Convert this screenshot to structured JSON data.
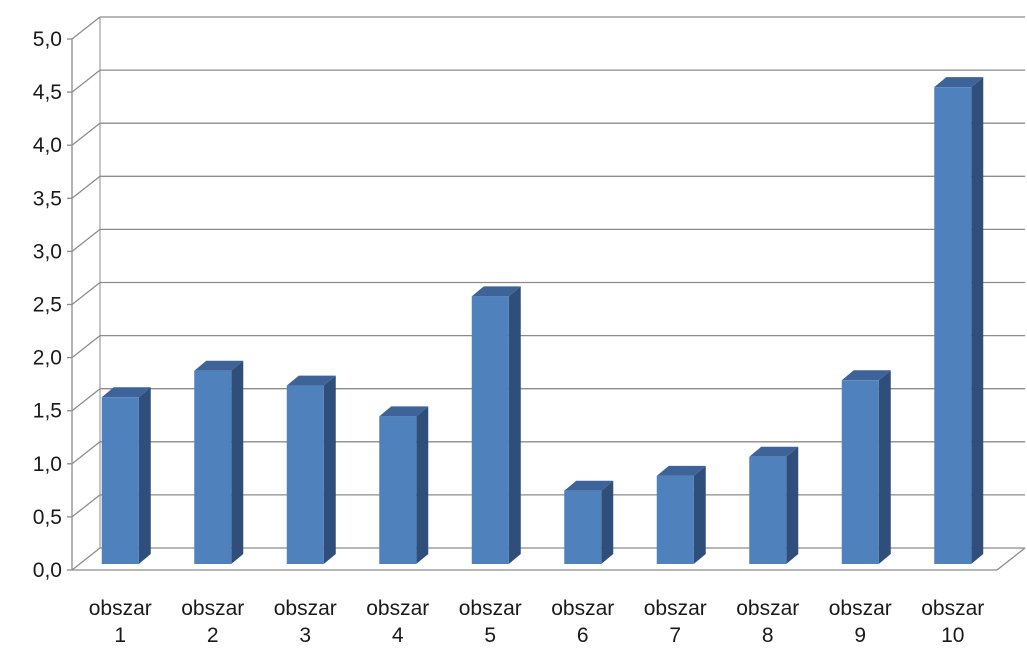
{
  "chart_data": {
    "type": "bar",
    "title": "",
    "xlabel": "",
    "ylabel": "",
    "categories": [
      [
        "obszar",
        "1"
      ],
      [
        "obszar",
        "2"
      ],
      [
        "obszar",
        "3"
      ],
      [
        "obszar",
        "4"
      ],
      [
        "obszar",
        "5"
      ],
      [
        "obszar",
        "6"
      ],
      [
        "obszar",
        "7"
      ],
      [
        "obszar",
        "8"
      ],
      [
        "obszar",
        "9"
      ],
      [
        "obszar",
        "10"
      ]
    ],
    "values": [
      1.57,
      1.82,
      1.68,
      1.39,
      2.52,
      0.69,
      0.83,
      1.01,
      1.73,
      4.49
    ],
    "ylim": [
      0,
      5.0
    ],
    "yticks": [
      "0,0",
      "0,5",
      "1,0",
      "1,5",
      "2,0",
      "2,5",
      "3,0",
      "3,5",
      "4,0",
      "4,5",
      "5,0"
    ],
    "grid": true,
    "legend": "none",
    "bar_color": "#4F81BD",
    "bar_side_color": "#2F4F7A",
    "bar_top_color": "#3E6399",
    "grid_color": "#8C8C8C"
  }
}
